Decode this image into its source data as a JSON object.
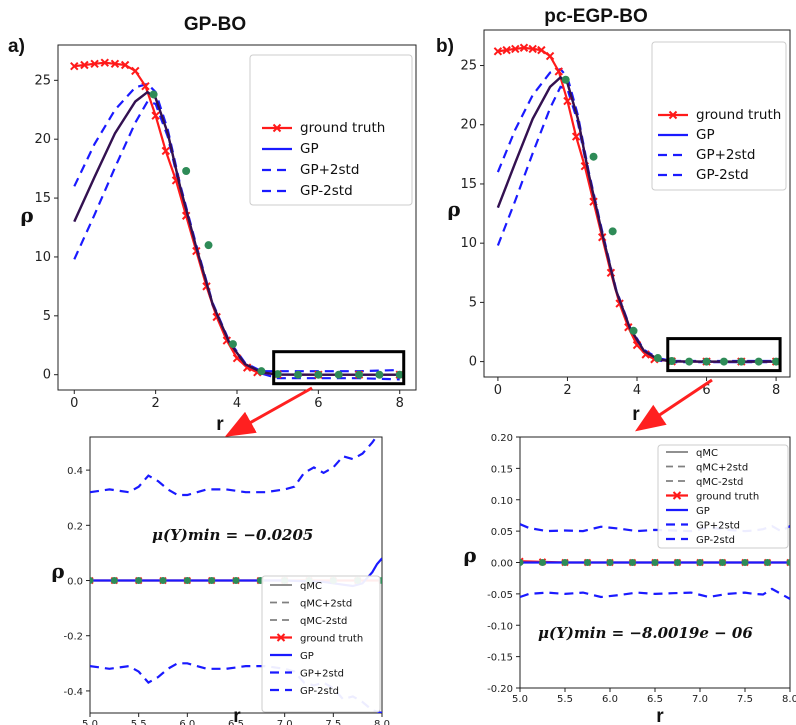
{
  "colors": {
    "ground_truth": "#ff1a1a",
    "gp": "#1a1aff",
    "gp_mean_dark": "#3a1030",
    "qmc": "#808080",
    "points": "#2e8b57",
    "arrow": "#ff2020",
    "zoom_box": "#000000"
  },
  "chart_data": [
    {
      "panel_letter": "a)",
      "title": "GP-BO",
      "type": "line",
      "xlabel": "r",
      "ylabel": "ρ",
      "xlim": [
        -0.4,
        8.4
      ],
      "ylim": [
        -1.3,
        28
      ],
      "xticks": [
        0,
        2,
        4,
        6,
        8
      ],
      "yticks": [
        0,
        5,
        10,
        15,
        20,
        25
      ],
      "legend": [
        "ground truth",
        "GP",
        "GP+2std",
        "GP-2std"
      ],
      "legend_position": "upper-right",
      "zoom_box": {
        "x": [
          5.0,
          8.0
        ]
      },
      "series": [
        {
          "name": "ground truth",
          "x": [
            0,
            0.25,
            0.5,
            0.75,
            1.0,
            1.25,
            1.5,
            1.75,
            2.0,
            2.25,
            2.5,
            2.75,
            3.0,
            3.25,
            3.5,
            3.75,
            4.0,
            4.25,
            4.5,
            5,
            6,
            7,
            8
          ],
          "y": [
            26.2,
            26.3,
            26.4,
            26.5,
            26.4,
            26.3,
            25.8,
            24.5,
            22.0,
            19.0,
            16.5,
            13.5,
            10.5,
            7.5,
            4.9,
            2.9,
            1.4,
            0.6,
            0.2,
            0.02,
            0,
            0,
            0
          ]
        },
        {
          "name": "GP",
          "x": [
            0,
            0.5,
            1.0,
            1.5,
            1.8,
            2.0,
            2.3,
            2.6,
            3.0,
            3.4,
            3.8,
            4.2,
            4.6,
            5,
            6,
            7,
            8
          ],
          "y": [
            13.0,
            16.8,
            20.5,
            23.2,
            24.0,
            23.5,
            20.5,
            16.0,
            10.8,
            6.0,
            2.8,
            0.9,
            0.2,
            0.02,
            0,
            0,
            0
          ]
        },
        {
          "name": "GP+2std",
          "x": [
            0,
            0.5,
            1.0,
            1.5,
            1.8,
            2.0,
            2.3,
            2.6,
            3.0,
            3.4,
            3.8,
            4.2,
            4.6,
            5,
            6,
            7,
            8
          ],
          "y": [
            16.0,
            19.6,
            22.5,
            24.4,
            24.7,
            24.0,
            20.8,
            16.2,
            11.0,
            6.1,
            2.9,
            1.0,
            0.3,
            0.3,
            0.3,
            0.3,
            0.4
          ]
        },
        {
          "name": "GP-2std",
          "x": [
            0,
            0.5,
            1.0,
            1.5,
            1.8,
            2.0,
            2.3,
            2.6,
            3.0,
            3.4,
            3.8,
            4.2,
            4.6,
            5,
            6,
            7,
            8
          ],
          "y": [
            9.8,
            13.6,
            17.6,
            21.4,
            23.2,
            23.0,
            20.2,
            15.8,
            10.6,
            5.9,
            2.7,
            0.8,
            0.1,
            -0.3,
            -0.3,
            -0.3,
            -0.4
          ]
        },
        {
          "name": "samples",
          "x": [
            1.95,
            2.75,
            3.3,
            3.9,
            4.6,
            5.0,
            5.5,
            6.0,
            6.5,
            7.0,
            7.5,
            8.0
          ],
          "y": [
            23.8,
            17.3,
            11.0,
            2.6,
            0.3,
            0.05,
            0,
            0,
            0,
            0,
            0,
            0
          ]
        }
      ]
    },
    {
      "panel_letter": "b)",
      "title": "pc-EGP-BO",
      "type": "line",
      "xlabel": "r",
      "ylabel": "ρ",
      "xlim": [
        -0.4,
        8.4
      ],
      "ylim": [
        -1.3,
        28
      ],
      "xticks": [
        0,
        2,
        4,
        6,
        8
      ],
      "yticks": [
        0,
        5,
        10,
        15,
        20,
        25
      ],
      "legend": [
        "ground truth",
        "GP",
        "GP+2std",
        "GP-2std"
      ],
      "legend_position": "upper-right",
      "zoom_box": {
        "x": [
          5.0,
          8.0
        ]
      },
      "series": [
        {
          "name": "ground truth",
          "x": [
            0,
            0.25,
            0.5,
            0.75,
            1.0,
            1.25,
            1.5,
            1.75,
            2.0,
            2.25,
            2.5,
            2.75,
            3.0,
            3.25,
            3.5,
            3.75,
            4.0,
            4.25,
            4.5,
            5,
            6,
            7,
            8
          ],
          "y": [
            26.2,
            26.3,
            26.4,
            26.5,
            26.4,
            26.3,
            25.8,
            24.5,
            22.0,
            19.0,
            16.5,
            13.5,
            10.5,
            7.5,
            4.9,
            2.9,
            1.4,
            0.6,
            0.2,
            0.02,
            0,
            0,
            0
          ]
        },
        {
          "name": "GP",
          "x": [
            0,
            0.5,
            1.0,
            1.5,
            1.8,
            2.0,
            2.3,
            2.6,
            3.0,
            3.4,
            3.8,
            4.2,
            4.6,
            5,
            6,
            7,
            8
          ],
          "y": [
            13.0,
            16.8,
            20.5,
            23.2,
            24.0,
            23.5,
            20.5,
            16.0,
            10.8,
            6.0,
            2.8,
            0.9,
            0.2,
            0.02,
            0,
            0,
            0
          ]
        },
        {
          "name": "GP+2std",
          "x": [
            0,
            0.5,
            1.0,
            1.5,
            1.8,
            2.0,
            2.3,
            2.6,
            3.0,
            3.4,
            3.8,
            4.2,
            4.6,
            5,
            6,
            7,
            8
          ],
          "y": [
            16.0,
            19.6,
            22.5,
            24.4,
            24.7,
            24.0,
            20.8,
            16.2,
            11.0,
            6.1,
            2.9,
            1.0,
            0.3,
            0.05,
            0.05,
            0.05,
            0.05
          ]
        },
        {
          "name": "GP-2std",
          "x": [
            0,
            0.5,
            1.0,
            1.5,
            1.8,
            2.0,
            2.3,
            2.6,
            3.0,
            3.4,
            3.8,
            4.2,
            4.6,
            5,
            6,
            7,
            8
          ],
          "y": [
            9.8,
            13.6,
            17.6,
            21.4,
            23.2,
            23.0,
            20.2,
            15.8,
            10.6,
            5.9,
            2.7,
            0.8,
            0.1,
            -0.05,
            -0.05,
            -0.05,
            -0.05
          ]
        },
        {
          "name": "samples",
          "x": [
            1.95,
            2.75,
            3.3,
            3.9,
            4.6,
            5.0,
            5.5,
            6.0,
            6.5,
            7.0,
            7.5,
            8.0
          ],
          "y": [
            23.8,
            17.3,
            11.0,
            2.6,
            0.3,
            0.05,
            0,
            0,
            0,
            0,
            0,
            0
          ]
        }
      ]
    },
    {
      "type": "line",
      "xlabel": "r",
      "ylabel": "ρ",
      "xlim": [
        5.0,
        8.0
      ],
      "ylim": [
        -0.48,
        0.52
      ],
      "xticks": [
        5.0,
        5.5,
        6.0,
        6.5,
        7.0,
        7.5,
        8.0
      ],
      "yticks": [
        -0.4,
        -0.2,
        0.0,
        0.2,
        0.4
      ],
      "annotation": "μ(Y)min = −0.0205",
      "legend": [
        "qMC",
        "qMC+2std",
        "qMC-2std",
        "ground truth",
        "GP",
        "GP+2std",
        "GP-2std"
      ],
      "legend_position": "lower-right",
      "series": [
        {
          "name": "qMC",
          "x": [
            5.0,
            8.0
          ],
          "y": [
            0.0,
            0.0
          ]
        },
        {
          "name": "ground truth",
          "x": [
            5.0,
            5.25,
            5.5,
            5.75,
            6.0,
            6.25,
            6.5,
            6.75,
            7.0,
            7.25,
            7.5,
            7.75,
            8.0
          ],
          "y": [
            0,
            0,
            0,
            0,
            0,
            0,
            0,
            0,
            0,
            0,
            0,
            0,
            0
          ]
        },
        {
          "name": "GP",
          "x": [
            5.0,
            6.0,
            7.0,
            7.4,
            7.6,
            7.7,
            7.8,
            7.9,
            7.95,
            8.0
          ],
          "y": [
            0.0,
            0.0,
            0.0,
            -0.005,
            -0.015,
            -0.02,
            -0.01,
            0.03,
            0.06,
            0.08
          ]
        },
        {
          "name": "GP+2std",
          "x": [
            5.0,
            5.2,
            5.4,
            5.5,
            5.6,
            5.7,
            5.8,
            5.9,
            6.0,
            6.2,
            6.4,
            6.6,
            6.8,
            7.0,
            7.1,
            7.2,
            7.3,
            7.4,
            7.5,
            7.6,
            7.7,
            7.8,
            7.9,
            8.0
          ],
          "y": [
            0.32,
            0.33,
            0.32,
            0.34,
            0.38,
            0.36,
            0.33,
            0.31,
            0.31,
            0.33,
            0.33,
            0.32,
            0.32,
            0.33,
            0.34,
            0.39,
            0.41,
            0.39,
            0.41,
            0.45,
            0.44,
            0.46,
            0.5,
            0.55
          ]
        },
        {
          "name": "GP-2std",
          "x": [
            5.0,
            5.2,
            5.4,
            5.5,
            5.6,
            5.7,
            5.8,
            5.9,
            6.0,
            6.2,
            6.4,
            6.6,
            6.8,
            7.0,
            7.1,
            7.2,
            7.3,
            7.4,
            7.5,
            7.6,
            7.7,
            7.8,
            7.9,
            8.0
          ],
          "y": [
            -0.31,
            -0.32,
            -0.31,
            -0.33,
            -0.37,
            -0.35,
            -0.32,
            -0.3,
            -0.3,
            -0.32,
            -0.32,
            -0.31,
            -0.31,
            -0.32,
            -0.33,
            -0.37,
            -0.38,
            -0.37,
            -0.39,
            -0.43,
            -0.42,
            -0.44,
            -0.47,
            -0.48
          ]
        },
        {
          "name": "samples",
          "x": [
            5.0,
            5.25,
            5.5,
            5.75,
            6.0,
            6.25,
            6.5,
            6.75,
            7.0,
            7.25,
            7.5,
            7.75,
            8.0
          ],
          "y": [
            0,
            0,
            0,
            0,
            0,
            0,
            0,
            0,
            0,
            0,
            0,
            0,
            0
          ]
        }
      ]
    },
    {
      "type": "line",
      "xlabel": "r",
      "ylabel": "ρ",
      "xlim": [
        5.0,
        8.0
      ],
      "ylim": [
        -0.2,
        0.2
      ],
      "xticks": [
        5.0,
        5.5,
        6.0,
        6.5,
        7.0,
        7.5,
        8.0
      ],
      "yticks": [
        -0.2,
        -0.15,
        -0.1,
        -0.05,
        0.0,
        0.05,
        0.1,
        0.15,
        0.2
      ],
      "annotation": "μ(Y)min = −8.0019e − 06",
      "legend": [
        "qMC",
        "qMC+2std",
        "qMC-2std",
        "ground truth",
        "GP",
        "GP+2std",
        "GP-2std"
      ],
      "legend_position": "upper-right",
      "series": [
        {
          "name": "qMC",
          "x": [
            5.0,
            8.0
          ],
          "y": [
            0.0,
            0.0
          ]
        },
        {
          "name": "ground truth",
          "x": [
            5.0,
            5.25,
            5.5,
            5.75,
            6.0,
            6.25,
            6.5,
            6.75,
            7.0,
            7.25,
            7.5,
            7.75,
            8.0
          ],
          "y": [
            0.002,
            0.001,
            0,
            0,
            0,
            0,
            0,
            0,
            0,
            0,
            0,
            0,
            0
          ]
        },
        {
          "name": "GP",
          "x": [
            5.0,
            8.0
          ],
          "y": [
            0.0,
            0.0
          ]
        },
        {
          "name": "GP+2std",
          "x": [
            5.0,
            5.1,
            5.3,
            5.5,
            5.7,
            5.9,
            6.1,
            6.3,
            6.5,
            6.7,
            6.9,
            7.1,
            7.3,
            7.5,
            7.6,
            7.7,
            7.8,
            7.9,
            8.0
          ],
          "y": [
            0.061,
            0.055,
            0.05,
            0.051,
            0.05,
            0.057,
            0.054,
            0.05,
            0.052,
            0.051,
            0.05,
            0.056,
            0.052,
            0.05,
            0.051,
            0.053,
            0.058,
            0.05,
            0.058
          ]
        },
        {
          "name": "GP-2std",
          "x": [
            5.0,
            5.1,
            5.3,
            5.5,
            5.7,
            5.9,
            6.1,
            6.3,
            6.5,
            6.7,
            6.9,
            7.1,
            7.3,
            7.5,
            7.6,
            7.7,
            7.8,
            7.9,
            8.0
          ],
          "y": [
            -0.055,
            -0.05,
            -0.048,
            -0.05,
            -0.048,
            -0.055,
            -0.052,
            -0.048,
            -0.05,
            -0.049,
            -0.048,
            -0.055,
            -0.05,
            -0.048,
            -0.05,
            -0.051,
            -0.042,
            -0.05,
            -0.058
          ]
        },
        {
          "name": "samples",
          "x": [
            5.0,
            5.25,
            5.5,
            5.75,
            6.0,
            6.25,
            6.5,
            6.75,
            7.0,
            7.25,
            7.5,
            7.75,
            8.0
          ],
          "y": [
            0,
            0,
            0,
            0,
            0,
            0,
            0,
            0,
            0,
            0,
            0,
            0,
            0
          ]
        }
      ]
    }
  ]
}
